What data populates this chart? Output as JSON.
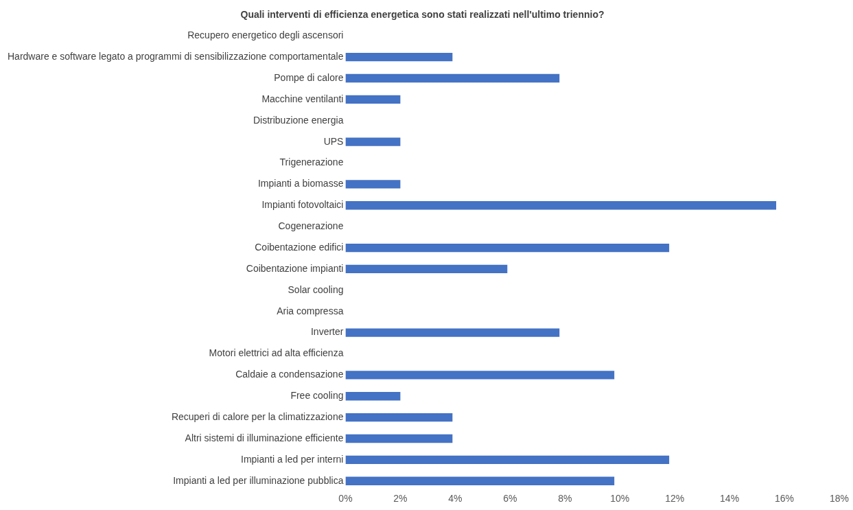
{
  "chart_data": {
    "type": "bar",
    "orientation": "horizontal",
    "title": "Quali interventi di efficienza energetica sono stati realizzati nell'ultimo triennio?",
    "categories": [
      "Recupero energetico degli ascensori",
      "Hardware e software legato a programmi di sensibilizzazione comportamentale",
      "Pompe di calore",
      "Macchine ventilanti",
      "Distribuzione energia",
      "UPS",
      "Trigenerazione",
      "Impianti a biomasse",
      "Impianti fotovoltaici",
      "Cogenerazione",
      "Coibentazione edifici",
      "Coibentazione impianti",
      "Solar cooling",
      "Aria compressa",
      "Inverter",
      "Motori elettrici ad alta efficienza",
      "Caldaie a condensazione",
      "Free cooling",
      "Recuperi di calore per la climatizzazione",
      "Altri sistemi di illuminazione efficiente",
      "Impianti a led per interni",
      "Impianti a led per illuminazione pubblica"
    ],
    "values": [
      0,
      3.9,
      7.8,
      2.0,
      0,
      2.0,
      0,
      2.0,
      15.7,
      0,
      11.8,
      5.9,
      0,
      0,
      7.8,
      0,
      9.8,
      2.0,
      3.9,
      3.9,
      11.8,
      9.8
    ],
    "color": "#4472c4",
    "xlim": [
      0,
      18
    ],
    "xticks": [
      {
        "value": 0,
        "label": "0%"
      },
      {
        "value": 2,
        "label": "2%"
      },
      {
        "value": 4,
        "label": "4%"
      },
      {
        "value": 6,
        "label": "6%"
      },
      {
        "value": 8,
        "label": "8%"
      },
      {
        "value": 10,
        "label": "10%"
      },
      {
        "value": 12,
        "label": "12%"
      },
      {
        "value": 14,
        "label": "14%"
      },
      {
        "value": 16,
        "label": "16%"
      },
      {
        "value": 18,
        "label": "18%"
      }
    ],
    "grid": false,
    "legend": false
  }
}
